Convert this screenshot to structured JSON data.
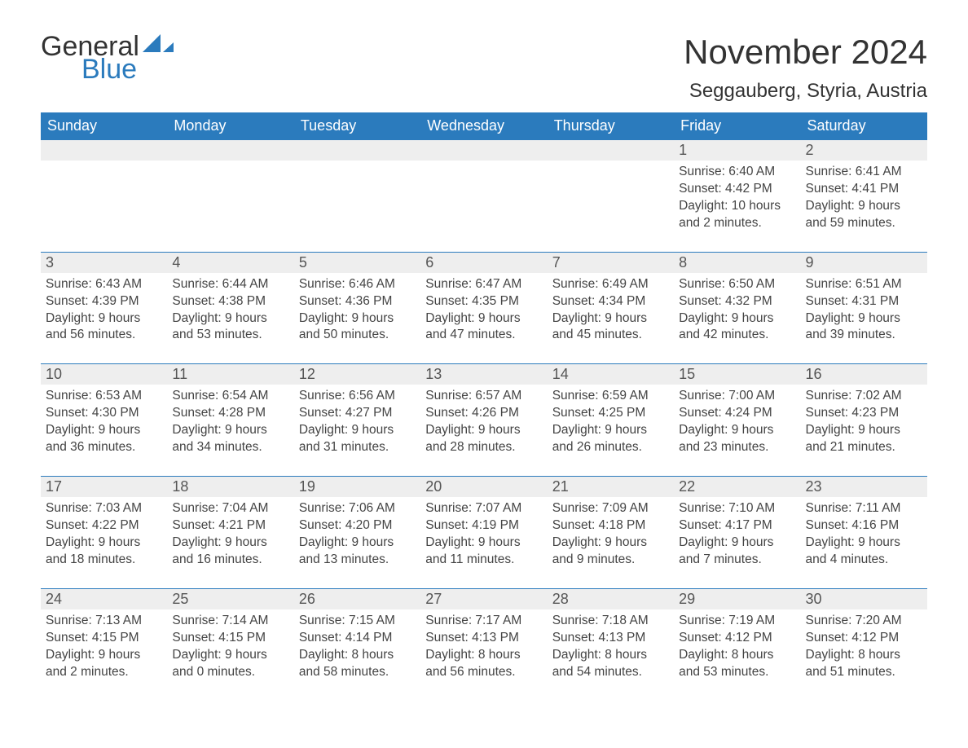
{
  "brand": {
    "name1": "General",
    "name2": "Blue",
    "sail_color": "#2b7bbd",
    "text_color": "#333333"
  },
  "title": "November 2024",
  "location": "Seggauberg, Styria, Austria",
  "colors": {
    "header_bg": "#2b7bbd",
    "header_fg": "#ffffff",
    "row_stripe": "#eeeeee",
    "divider": "#2b7bbd",
    "body_text": "#444444"
  },
  "day_names": [
    "Sunday",
    "Monday",
    "Tuesday",
    "Wednesday",
    "Thursday",
    "Friday",
    "Saturday"
  ],
  "weeks": [
    [
      {
        "blank": true
      },
      {
        "blank": true
      },
      {
        "blank": true
      },
      {
        "blank": true
      },
      {
        "blank": true
      },
      {
        "n": 1,
        "sunrise": "6:40 AM",
        "sunset": "4:42 PM",
        "daylight": "10 hours and 2 minutes."
      },
      {
        "n": 2,
        "sunrise": "6:41 AM",
        "sunset": "4:41 PM",
        "daylight": "9 hours and 59 minutes."
      }
    ],
    [
      {
        "n": 3,
        "sunrise": "6:43 AM",
        "sunset": "4:39 PM",
        "daylight": "9 hours and 56 minutes."
      },
      {
        "n": 4,
        "sunrise": "6:44 AM",
        "sunset": "4:38 PM",
        "daylight": "9 hours and 53 minutes."
      },
      {
        "n": 5,
        "sunrise": "6:46 AM",
        "sunset": "4:36 PM",
        "daylight": "9 hours and 50 minutes."
      },
      {
        "n": 6,
        "sunrise": "6:47 AM",
        "sunset": "4:35 PM",
        "daylight": "9 hours and 47 minutes."
      },
      {
        "n": 7,
        "sunrise": "6:49 AM",
        "sunset": "4:34 PM",
        "daylight": "9 hours and 45 minutes."
      },
      {
        "n": 8,
        "sunrise": "6:50 AM",
        "sunset": "4:32 PM",
        "daylight": "9 hours and 42 minutes."
      },
      {
        "n": 9,
        "sunrise": "6:51 AM",
        "sunset": "4:31 PM",
        "daylight": "9 hours and 39 minutes."
      }
    ],
    [
      {
        "n": 10,
        "sunrise": "6:53 AM",
        "sunset": "4:30 PM",
        "daylight": "9 hours and 36 minutes."
      },
      {
        "n": 11,
        "sunrise": "6:54 AM",
        "sunset": "4:28 PM",
        "daylight": "9 hours and 34 minutes."
      },
      {
        "n": 12,
        "sunrise": "6:56 AM",
        "sunset": "4:27 PM",
        "daylight": "9 hours and 31 minutes."
      },
      {
        "n": 13,
        "sunrise": "6:57 AM",
        "sunset": "4:26 PM",
        "daylight": "9 hours and 28 minutes."
      },
      {
        "n": 14,
        "sunrise": "6:59 AM",
        "sunset": "4:25 PM",
        "daylight": "9 hours and 26 minutes."
      },
      {
        "n": 15,
        "sunrise": "7:00 AM",
        "sunset": "4:24 PM",
        "daylight": "9 hours and 23 minutes."
      },
      {
        "n": 16,
        "sunrise": "7:02 AM",
        "sunset": "4:23 PM",
        "daylight": "9 hours and 21 minutes."
      }
    ],
    [
      {
        "n": 17,
        "sunrise": "7:03 AM",
        "sunset": "4:22 PM",
        "daylight": "9 hours and 18 minutes."
      },
      {
        "n": 18,
        "sunrise": "7:04 AM",
        "sunset": "4:21 PM",
        "daylight": "9 hours and 16 minutes."
      },
      {
        "n": 19,
        "sunrise": "7:06 AM",
        "sunset": "4:20 PM",
        "daylight": "9 hours and 13 minutes."
      },
      {
        "n": 20,
        "sunrise": "7:07 AM",
        "sunset": "4:19 PM",
        "daylight": "9 hours and 11 minutes."
      },
      {
        "n": 21,
        "sunrise": "7:09 AM",
        "sunset": "4:18 PM",
        "daylight": "9 hours and 9 minutes."
      },
      {
        "n": 22,
        "sunrise": "7:10 AM",
        "sunset": "4:17 PM",
        "daylight": "9 hours and 7 minutes."
      },
      {
        "n": 23,
        "sunrise": "7:11 AM",
        "sunset": "4:16 PM",
        "daylight": "9 hours and 4 minutes."
      }
    ],
    [
      {
        "n": 24,
        "sunrise": "7:13 AM",
        "sunset": "4:15 PM",
        "daylight": "9 hours and 2 minutes."
      },
      {
        "n": 25,
        "sunrise": "7:14 AM",
        "sunset": "4:15 PM",
        "daylight": "9 hours and 0 minutes."
      },
      {
        "n": 26,
        "sunrise": "7:15 AM",
        "sunset": "4:14 PM",
        "daylight": "8 hours and 58 minutes."
      },
      {
        "n": 27,
        "sunrise": "7:17 AM",
        "sunset": "4:13 PM",
        "daylight": "8 hours and 56 minutes."
      },
      {
        "n": 28,
        "sunrise": "7:18 AM",
        "sunset": "4:13 PM",
        "daylight": "8 hours and 54 minutes."
      },
      {
        "n": 29,
        "sunrise": "7:19 AM",
        "sunset": "4:12 PM",
        "daylight": "8 hours and 53 minutes."
      },
      {
        "n": 30,
        "sunrise": "7:20 AM",
        "sunset": "4:12 PM",
        "daylight": "8 hours and 51 minutes."
      }
    ]
  ],
  "labels": {
    "sunrise": "Sunrise:",
    "sunset": "Sunset:",
    "daylight": "Daylight:"
  }
}
